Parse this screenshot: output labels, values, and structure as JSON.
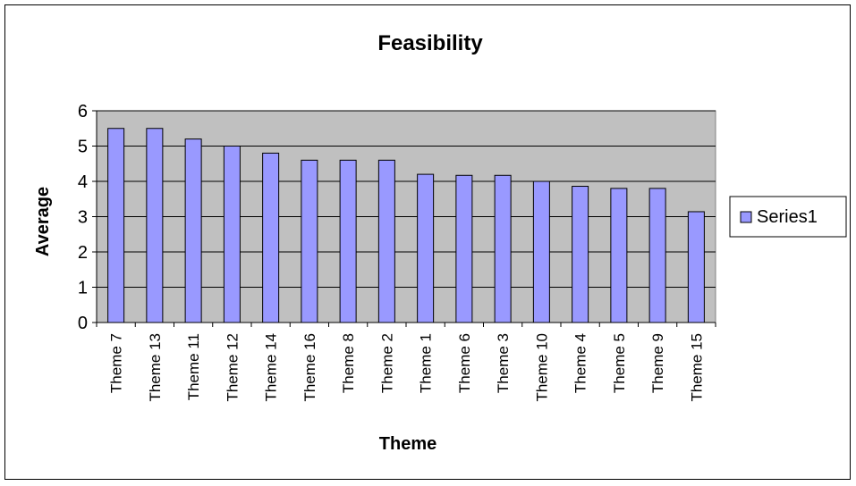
{
  "chart_data": {
    "type": "bar",
    "title": "Feasibility",
    "xlabel": "Theme",
    "ylabel": "Average",
    "categories": [
      "Theme 7",
      "Theme 13",
      "Theme 11",
      "Theme 12",
      "Theme 14",
      "Theme 16",
      "Theme 8",
      "Theme 2",
      "Theme 1",
      "Theme 6",
      "Theme 3",
      "Theme 10",
      "Theme 4",
      "Theme 5",
      "Theme 9",
      "Theme 15"
    ],
    "series": [
      {
        "name": "Series1",
        "values": [
          5.5,
          5.5,
          5.2,
          5.0,
          4.8,
          4.6,
          4.6,
          4.6,
          4.2,
          4.17,
          4.17,
          4.0,
          3.86,
          3.8,
          3.8,
          3.14
        ]
      }
    ],
    "ylim": [
      0,
      6
    ],
    "yticks": [
      0,
      1,
      2,
      3,
      4,
      5,
      6
    ],
    "grid": true,
    "legend_position": "right",
    "colors": {
      "bar_fill": "#9999FF",
      "bar_stroke": "#000000",
      "plot_background": "#C0C0C0",
      "gridline": "#000000"
    }
  }
}
